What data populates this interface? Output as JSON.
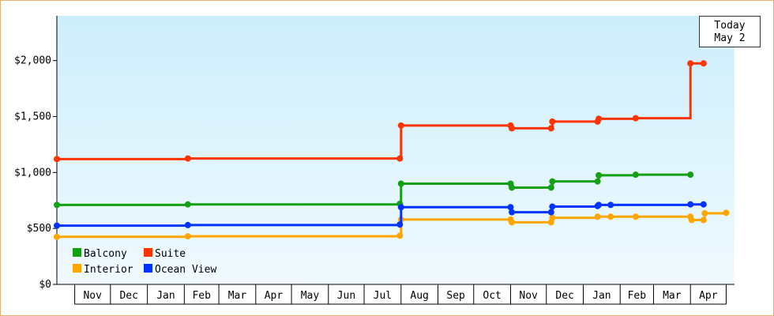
{
  "chart_data": {
    "type": "line",
    "step": true,
    "title": "",
    "xlabel": "",
    "ylabel": "",
    "ylim": [
      0,
      2400
    ],
    "y_ticks": [
      0,
      500,
      1000,
      1500,
      2000
    ],
    "y_tick_labels": [
      "$0",
      "$500",
      "$1,000",
      "$1,500",
      "$2,000"
    ],
    "x_axis": {
      "start": "2023-10-17",
      "end": "2025-05-08",
      "month_labels": [
        "Nov",
        "Dec",
        "Jan",
        "Feb",
        "Mar",
        "Apr",
        "May",
        "Jun",
        "Jul",
        "Aug",
        "Sep",
        "Oct",
        "Nov",
        "Dec",
        "Jan",
        "Feb",
        "Mar",
        "Apr"
      ]
    },
    "grid": false,
    "background_gradient": [
      "#cdeefb",
      "#f0fafe"
    ],
    "legend": {
      "position": "bottom-left",
      "columns": 2
    },
    "annotation": {
      "line1": "Today",
      "line2": "May 2"
    },
    "series": [
      {
        "name": "Balcony",
        "color": "#14a014",
        "points": [
          [
            "2023-10-17",
            710
          ],
          [
            "2024-02-04",
            715
          ],
          [
            "2024-07-31",
            720
          ],
          [
            "2024-08-01",
            900
          ],
          [
            "2024-11-01",
            900
          ],
          [
            "2024-11-02",
            865
          ],
          [
            "2024-12-05",
            865
          ],
          [
            "2024-12-06",
            920
          ],
          [
            "2025-01-13",
            920
          ],
          [
            "2025-01-14",
            975
          ],
          [
            "2025-02-14",
            980
          ],
          [
            "2025-04-01",
            980
          ]
        ]
      },
      {
        "name": "Suite",
        "color": "#ff3300",
        "points": [
          [
            "2023-10-17",
            1120
          ],
          [
            "2024-02-04",
            1125
          ],
          [
            "2024-07-31",
            1125
          ],
          [
            "2024-08-01",
            1420
          ],
          [
            "2024-11-01",
            1420
          ],
          [
            "2024-11-02",
            1395
          ],
          [
            "2024-12-05",
            1395
          ],
          [
            "2024-12-06",
            1455
          ],
          [
            "2025-01-13",
            1455
          ],
          [
            "2025-01-14",
            1480
          ],
          [
            "2025-02-14",
            1485
          ],
          [
            "2025-04-01",
            1975
          ],
          [
            "2025-04-12",
            1975
          ]
        ]
      },
      {
        "name": "Interior",
        "color": "#ffa500",
        "points": [
          [
            "2023-10-17",
            425
          ],
          [
            "2024-02-04",
            430
          ],
          [
            "2024-07-31",
            435
          ],
          [
            "2024-08-01",
            580
          ],
          [
            "2024-11-01",
            580
          ],
          [
            "2024-11-02",
            555
          ],
          [
            "2024-12-05",
            555
          ],
          [
            "2024-12-06",
            595
          ],
          [
            "2025-01-13",
            605
          ],
          [
            "2025-01-24",
            605
          ],
          [
            "2025-02-14",
            605
          ],
          [
            "2025-04-01",
            605
          ],
          [
            "2025-04-02",
            575
          ],
          [
            "2025-04-12",
            575
          ],
          [
            "2025-04-13",
            635
          ],
          [
            "2025-05-01",
            640
          ]
        ]
      },
      {
        "name": "Ocean View",
        "color": "#0033ff",
        "points": [
          [
            "2023-10-17",
            525
          ],
          [
            "2024-02-04",
            530
          ],
          [
            "2024-07-31",
            535
          ],
          [
            "2024-08-01",
            690
          ],
          [
            "2024-11-01",
            690
          ],
          [
            "2024-11-02",
            645
          ],
          [
            "2024-12-05",
            645
          ],
          [
            "2024-12-06",
            695
          ],
          [
            "2025-01-13",
            700
          ],
          [
            "2025-01-14",
            710
          ],
          [
            "2025-01-24",
            710
          ],
          [
            "2025-04-01",
            715
          ],
          [
            "2025-04-12",
            715
          ]
        ]
      }
    ]
  }
}
